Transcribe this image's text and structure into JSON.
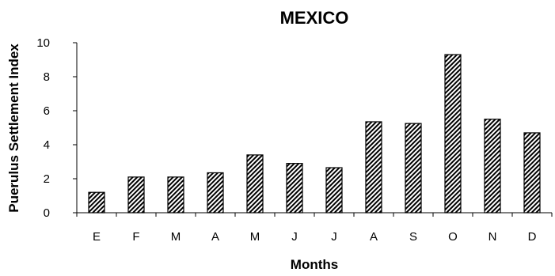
{
  "chart_data": {
    "type": "bar",
    "title": "MEXICO",
    "xlabel": "Months",
    "ylabel": "Puerulus Settlement Index",
    "categories": [
      "E",
      "F",
      "M",
      "A",
      "M",
      "J",
      "J",
      "A",
      "S",
      "O",
      "N",
      "D"
    ],
    "values": [
      1.2,
      2.1,
      2.1,
      2.35,
      3.4,
      2.9,
      2.65,
      5.35,
      5.25,
      9.3,
      5.5,
      4.7
    ],
    "ylim": [
      0,
      10
    ],
    "yticks": [
      0,
      2,
      4,
      6,
      8,
      10
    ],
    "grid": false,
    "legend": "none",
    "bar_fill": "diagonal-hatch",
    "bar_color": "#000000"
  }
}
